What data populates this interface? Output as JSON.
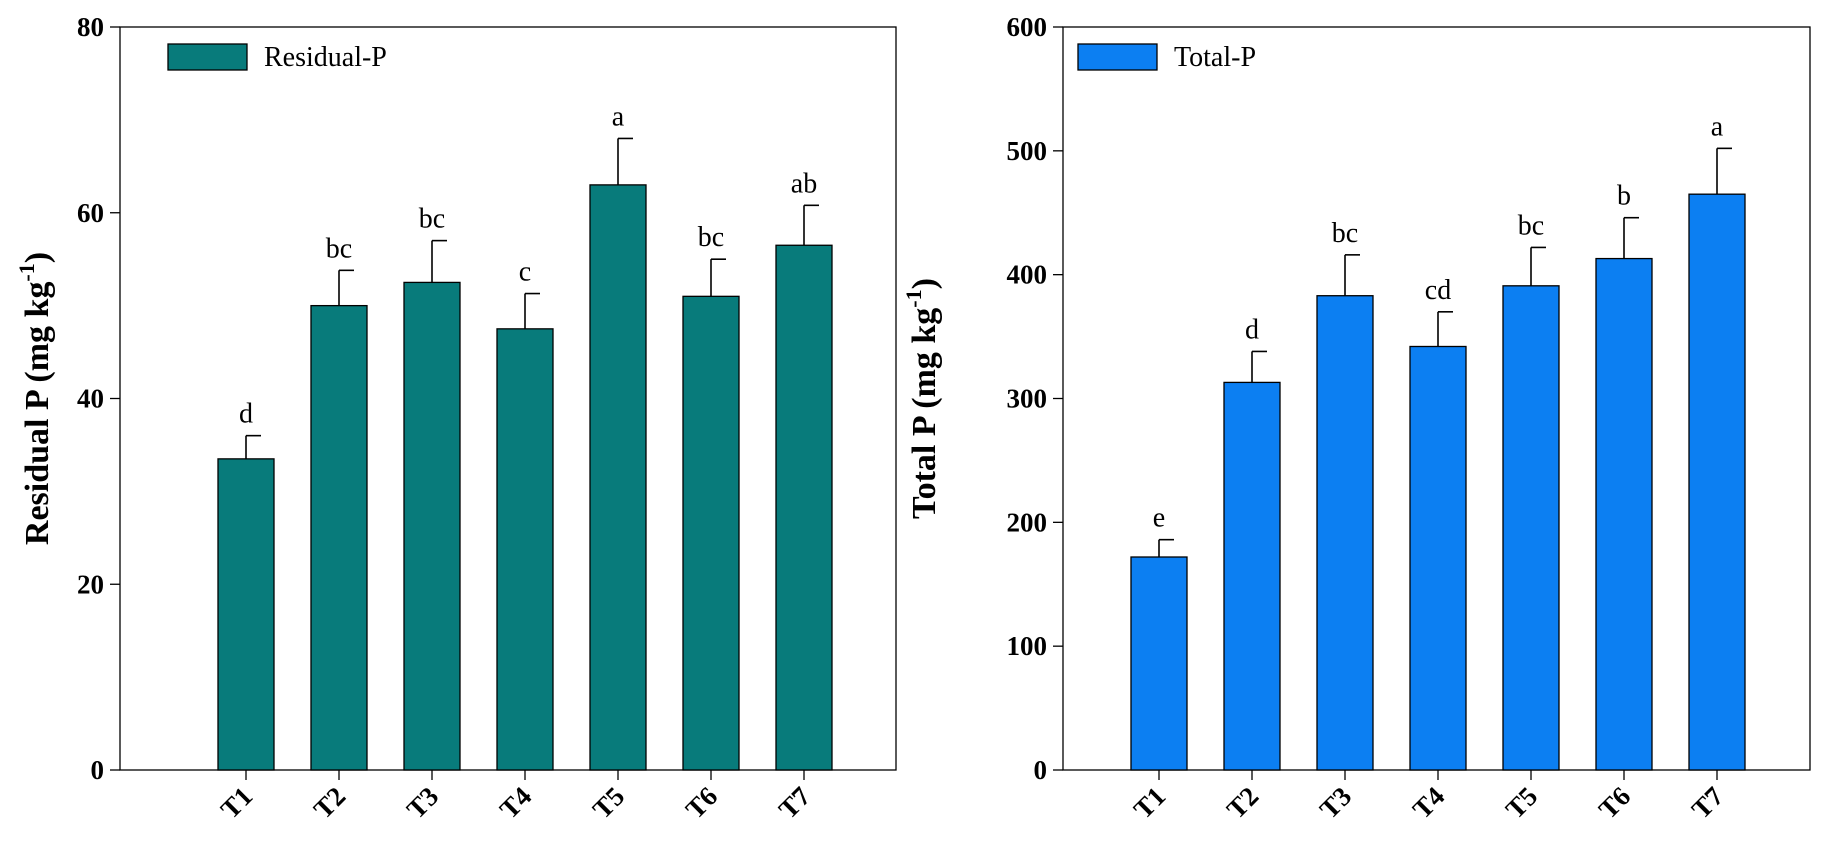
{
  "chart_data": [
    {
      "type": "bar",
      "categories": [
        "T1",
        "T2",
        "T3",
        "T4",
        "T5",
        "T6",
        "T7"
      ],
      "values": [
        33.5,
        50,
        52.5,
        47.5,
        63,
        51,
        56.5
      ],
      "error_bars": [
        2.5,
        3.8,
        4.5,
        3.8,
        5,
        4,
        4.3
      ],
      "significance_letters": [
        "d",
        "bc",
        "bc",
        "c",
        "a",
        "bc",
        "ab"
      ],
      "legend": "Residual-P",
      "ylabel_main": "Residual P (mg kg",
      "ylabel_sup": "-1",
      "ylabel_close": ")",
      "xlabel": "",
      "ylim": [
        0,
        80
      ],
      "yticks": [
        0,
        20,
        40,
        60,
        80
      ],
      "color": "#087b7b",
      "legend_position": "top-left"
    },
    {
      "type": "bar",
      "categories": [
        "T1",
        "T2",
        "T3",
        "T4",
        "T5",
        "T6",
        "T7"
      ],
      "values": [
        172,
        313,
        383,
        342,
        391,
        413,
        465
      ],
      "error_bars": [
        14,
        25,
        33,
        28,
        31,
        33,
        37
      ],
      "significance_letters": [
        "e",
        "d",
        "bc",
        "cd",
        "bc",
        "b",
        "a"
      ],
      "legend": "Total-P",
      "ylabel_main": "Total P (mg kg",
      "ylabel_sup": "-1",
      "ylabel_close": ")",
      "xlabel": "",
      "ylim": [
        0,
        600
      ],
      "yticks": [
        0,
        100,
        200,
        300,
        400,
        500,
        600
      ],
      "color": "#0c7ff2",
      "legend_position": "top-left"
    }
  ]
}
